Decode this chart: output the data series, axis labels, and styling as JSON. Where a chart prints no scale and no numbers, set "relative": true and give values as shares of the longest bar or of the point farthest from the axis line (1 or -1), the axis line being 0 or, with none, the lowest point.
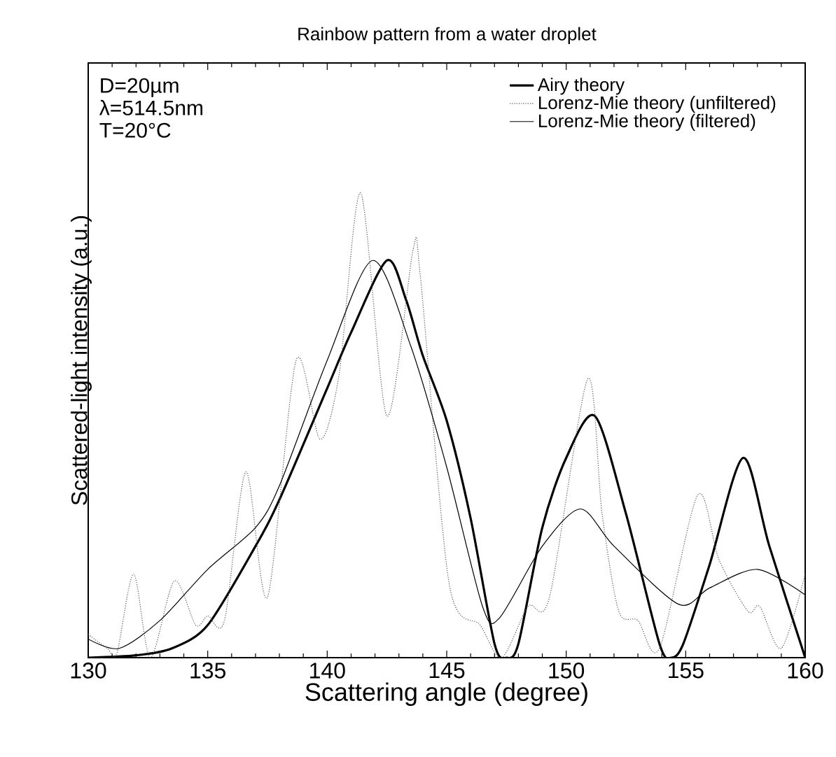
{
  "chart_data": {
    "type": "line",
    "title": "Rainbow pattern from a water droplet",
    "xlabel": "Scattering angle (degree)",
    "ylabel": "Scattered-light intensity (a.u.)",
    "relative": true,
    "xlim": [
      130,
      160
    ],
    "xticks": [
      130,
      135,
      140,
      145,
      150,
      155,
      160
    ],
    "legend": "top right",
    "annotations": [
      "D=20µm",
      "λ=514.5nm",
      "T=20°C"
    ],
    "series": [
      {
        "name": "Airy theory",
        "color": "#000000",
        "line_style": "solid",
        "x": [
          130,
          132,
          133.5,
          135,
          137,
          138,
          140,
          141,
          142.5,
          143.3,
          144,
          145,
          146,
          147,
          147.5,
          148,
          149,
          150,
          151.2,
          152.5,
          153.9,
          154.4,
          154.9,
          156,
          157.4,
          158.5,
          160
        ],
        "values": [
          0.0,
          0.005,
          0.02,
          0.07,
          0.24,
          0.34,
          0.58,
          0.7,
          0.855,
          0.77,
          0.65,
          0.51,
          0.3,
          0.03,
          0.0,
          0.03,
          0.28,
          0.43,
          0.52,
          0.31,
          0.03,
          0.0,
          0.03,
          0.2,
          0.43,
          0.24,
          0.0
        ]
      },
      {
        "name": "Lorenz-Mie theory (unfiltered)",
        "color": "#555555",
        "line_style": "dotted",
        "x": [
          130,
          130.8,
          131.2,
          131.9,
          132.6,
          133.6,
          134.5,
          135,
          135.7,
          136.6,
          137.5,
          138.7,
          139.7,
          140.5,
          141.4,
          142.5,
          143.6,
          143.9,
          145.1,
          146.4,
          147.3,
          148.4,
          149.3,
          150.9,
          151.5,
          152.2,
          153,
          153.9,
          155.5,
          156.4,
          157.6,
          158.1,
          159,
          160
        ],
        "values": [
          0.05,
          0.02,
          0.01,
          0.18,
          0.0,
          0.165,
          0.07,
          0.09,
          0.08,
          0.4,
          0.13,
          0.64,
          0.47,
          0.61,
          1.0,
          0.52,
          0.88,
          0.82,
          0.16,
          0.07,
          0.0,
          0.11,
          0.13,
          0.6,
          0.31,
          0.1,
          0.08,
          0.02,
          0.35,
          0.21,
          0.1,
          0.11,
          0.02,
          0.18
        ]
      },
      {
        "name": "Lorenz-Mie theory (filtered)",
        "color": "#000000",
        "line_style": "solid",
        "x": [
          130,
          131.3,
          133,
          135,
          137,
          138,
          140,
          141.9,
          143.5,
          145,
          146.5,
          147.2,
          149,
          150.6,
          152,
          154.7,
          156,
          158,
          160
        ],
        "values": [
          0.04,
          0.02,
          0.08,
          0.19,
          0.28,
          0.37,
          0.64,
          0.855,
          0.67,
          0.41,
          0.11,
          0.085,
          0.24,
          0.32,
          0.24,
          0.115,
          0.15,
          0.19,
          0.135
        ]
      }
    ]
  }
}
